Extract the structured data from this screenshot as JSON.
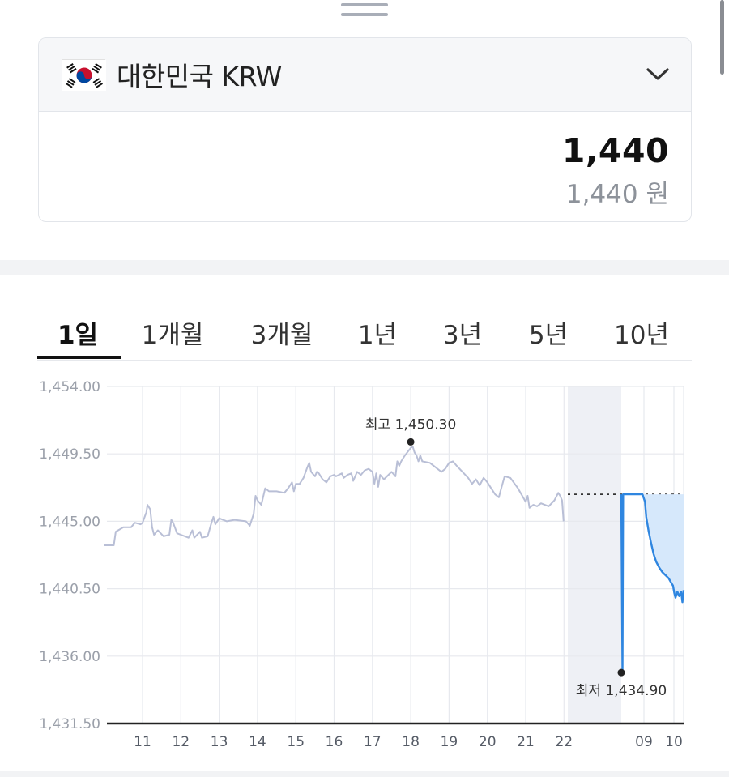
{
  "currency": {
    "flag_icon": "south-korea-flag-icon",
    "name": "대한민국 KRW",
    "amount": "1,440",
    "amount_words": "1,440 원"
  },
  "tabs": [
    {
      "label": "1일",
      "active": true
    },
    {
      "label": "1개월",
      "active": false
    },
    {
      "label": "3개월",
      "active": false
    },
    {
      "label": "1년",
      "active": false
    },
    {
      "label": "3년",
      "active": false
    },
    {
      "label": "5년",
      "active": false
    },
    {
      "label": "10년",
      "active": false
    }
  ],
  "colors": {
    "history_line": "#b9bfd6",
    "today_line": "#2f86e0",
    "today_fill": "#d6e8fb",
    "shade": "#eef0f5"
  },
  "chart_data": {
    "type": "line",
    "y_ticks": [
      "1,454.00",
      "1,449.50",
      "1,445.00",
      "1,440.50",
      "1,436.00",
      "1,431.50"
    ],
    "ylim": [
      1431.5,
      1454.0
    ],
    "x_ticks": [
      "11",
      "12",
      "13",
      "14",
      "15",
      "16",
      "17",
      "18",
      "19",
      "20",
      "21",
      "22",
      "09",
      "10"
    ],
    "annotations": {
      "high": {
        "label": "최고 1,450.30",
        "value": 1450.3
      },
      "low": {
        "label": "최저 1,434.90",
        "value": 1434.9
      }
    },
    "reference_level": 1446.8,
    "series": [
      {
        "x_unit": "day",
        "points": [
          [
            10.0,
            1443.4
          ],
          [
            10.25,
            1443.4
          ],
          [
            10.3,
            1444.3
          ],
          [
            10.5,
            1444.6
          ],
          [
            10.7,
            1444.6
          ],
          [
            10.8,
            1444.9
          ],
          [
            10.95,
            1444.8
          ],
          [
            11.0,
            1444.9
          ],
          [
            11.1,
            1445.6
          ],
          [
            11.13,
            1446.1
          ],
          [
            11.2,
            1445.8
          ],
          [
            11.25,
            1444.6
          ],
          [
            11.3,
            1444.1
          ],
          [
            11.4,
            1444.4
          ],
          [
            11.55,
            1444.0
          ],
          [
            11.7,
            1444.1
          ],
          [
            11.75,
            1445.1
          ],
          [
            11.8,
            1444.9
          ],
          [
            11.9,
            1444.2
          ],
          [
            12.0,
            1444.1
          ],
          [
            12.2,
            1443.9
          ],
          [
            12.3,
            1444.4
          ],
          [
            12.35,
            1443.9
          ],
          [
            12.5,
            1444.3
          ],
          [
            12.55,
            1443.9
          ],
          [
            12.7,
            1444.0
          ],
          [
            12.8,
            1444.9
          ],
          [
            12.85,
            1445.3
          ],
          [
            12.9,
            1444.8
          ],
          [
            13.0,
            1445.2
          ],
          [
            13.2,
            1445.0
          ],
          [
            13.4,
            1445.1
          ],
          [
            13.7,
            1445.0
          ],
          [
            13.8,
            1444.7
          ],
          [
            13.9,
            1445.5
          ],
          [
            13.95,
            1446.7
          ],
          [
            14.0,
            1446.4
          ],
          [
            14.1,
            1446.1
          ],
          [
            14.2,
            1447.2
          ],
          [
            14.3,
            1447.0
          ],
          [
            14.5,
            1447.0
          ],
          [
            14.7,
            1446.9
          ],
          [
            14.8,
            1447.2
          ],
          [
            14.9,
            1447.6
          ],
          [
            14.95,
            1447.0
          ],
          [
            15.0,
            1447.5
          ],
          [
            15.1,
            1447.5
          ],
          [
            15.2,
            1447.9
          ],
          [
            15.3,
            1448.6
          ],
          [
            15.35,
            1448.9
          ],
          [
            15.4,
            1448.3
          ],
          [
            15.5,
            1448.0
          ],
          [
            15.55,
            1448.3
          ],
          [
            15.6,
            1448.2
          ],
          [
            15.7,
            1447.8
          ],
          [
            15.8,
            1447.6
          ],
          [
            15.9,
            1448.0
          ],
          [
            16.0,
            1448.1
          ],
          [
            16.05,
            1448.0
          ],
          [
            16.2,
            1448.2
          ],
          [
            16.25,
            1447.9
          ],
          [
            16.35,
            1448.1
          ],
          [
            16.45,
            1448.2
          ],
          [
            16.5,
            1447.7
          ],
          [
            16.6,
            1448.3
          ],
          [
            16.7,
            1448.1
          ],
          [
            16.8,
            1448.4
          ],
          [
            16.9,
            1448.5
          ],
          [
            17.0,
            1448.3
          ],
          [
            17.05,
            1447.5
          ],
          [
            17.1,
            1448.2
          ],
          [
            17.15,
            1447.3
          ],
          [
            17.2,
            1448.1
          ],
          [
            17.3,
            1447.8
          ],
          [
            17.5,
            1448.3
          ],
          [
            17.6,
            1448.0
          ],
          [
            17.65,
            1449.0
          ],
          [
            17.7,
            1448.7
          ],
          [
            17.75,
            1449.0
          ],
          [
            17.85,
            1449.4
          ],
          [
            18.0,
            1449.9
          ],
          [
            18.05,
            1450.0
          ],
          [
            18.1,
            1449.6
          ],
          [
            18.15,
            1449.4
          ],
          [
            18.2,
            1449.0
          ],
          [
            18.25,
            1449.4
          ],
          [
            18.3,
            1449.0
          ],
          [
            18.5,
            1448.9
          ],
          [
            18.65,
            1448.6
          ],
          [
            18.8,
            1448.3
          ],
          [
            18.9,
            1448.5
          ],
          [
            19.0,
            1448.9
          ],
          [
            19.1,
            1449.0
          ],
          [
            19.2,
            1448.7
          ],
          [
            19.35,
            1448.3
          ],
          [
            19.5,
            1447.9
          ],
          [
            19.6,
            1447.5
          ],
          [
            19.7,
            1447.8
          ],
          [
            19.8,
            1447.4
          ],
          [
            19.9,
            1447.9
          ],
          [
            20.0,
            1447.6
          ],
          [
            20.1,
            1447.2
          ],
          [
            20.2,
            1446.8
          ],
          [
            20.3,
            1446.6
          ],
          [
            20.35,
            1447.1
          ],
          [
            20.45,
            1448.0
          ],
          [
            20.6,
            1447.9
          ],
          [
            20.8,
            1447.2
          ],
          [
            21.0,
            1446.3
          ],
          [
            21.05,
            1446.7
          ],
          [
            21.1,
            1445.9
          ],
          [
            21.2,
            1446.1
          ],
          [
            21.3,
            1446.0
          ],
          [
            21.4,
            1446.2
          ],
          [
            21.6,
            1446.0
          ],
          [
            21.75,
            1446.4
          ],
          [
            21.85,
            1446.9
          ],
          [
            21.9,
            1446.7
          ],
          [
            21.95,
            1446.4
          ],
          [
            21.99,
            1445.0
          ]
        ]
      },
      {
        "x_unit": "time",
        "points": [
          [
            0.0,
            1446.8
          ],
          [
            0.02,
            1434.9
          ],
          [
            0.03,
            1446.8
          ],
          [
            0.34,
            1446.8
          ],
          [
            0.38,
            1446.3
          ],
          [
            0.4,
            1445.3
          ],
          [
            0.44,
            1444.3
          ],
          [
            0.48,
            1443.5
          ],
          [
            0.52,
            1442.8
          ],
          [
            0.56,
            1442.3
          ],
          [
            0.61,
            1441.9
          ],
          [
            0.66,
            1441.6
          ],
          [
            0.71,
            1441.4
          ],
          [
            0.76,
            1441.2
          ],
          [
            0.8,
            1440.9
          ],
          [
            0.83,
            1440.7
          ],
          [
            0.85,
            1440.2
          ],
          [
            0.87,
            1439.9
          ],
          [
            0.9,
            1440.3
          ],
          [
            0.93,
            1440.0
          ],
          [
            0.96,
            1440.3
          ],
          [
            0.98,
            1439.6
          ],
          [
            1.0,
            1440.4
          ]
        ]
      }
    ]
  }
}
